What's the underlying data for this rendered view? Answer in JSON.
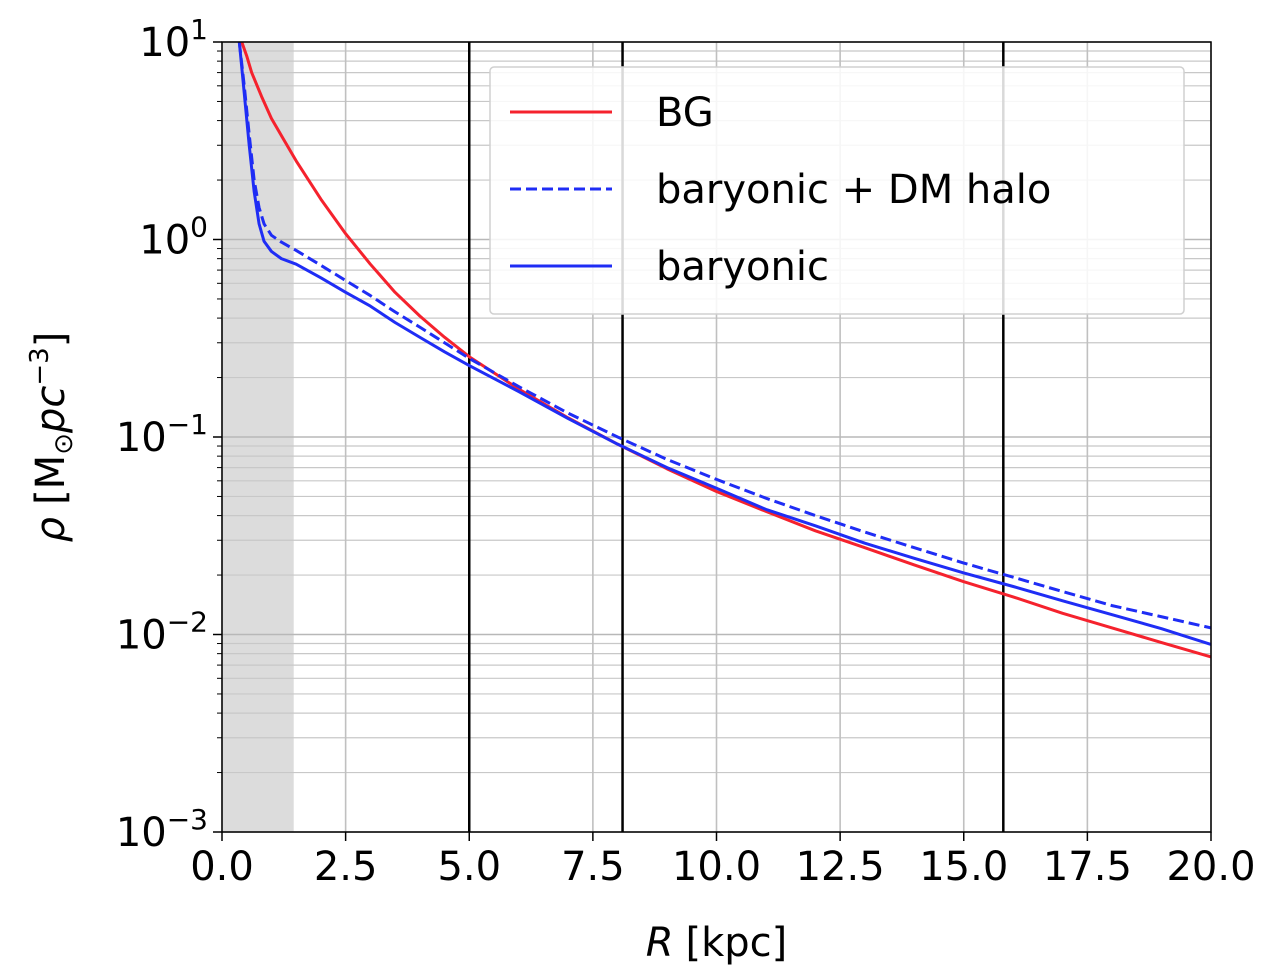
{
  "chart_data": {
    "type": "line",
    "xlabel_var": "R",
    "xlabel_unit": "[kpc]",
    "ylabel_var": "ρ",
    "ylabel_unit_open": "[M",
    "ylabel_unit_sub": "⊙",
    "ylabel_unit_mid": "pc",
    "ylabel_unit_sup": "−3",
    "ylabel_unit_close": "]",
    "xlim": [
      0,
      20
    ],
    "ylim": [
      0.001,
      10
    ],
    "yscale": "log",
    "grid": true,
    "legend_position": "upper right",
    "x_ticks": [
      "0.0",
      "2.5",
      "5.0",
      "7.5",
      "10.0",
      "12.5",
      "15.0",
      "17.5",
      "20.0"
    ],
    "y_ticks": [
      {
        "base": "10",
        "exp": "−3"
      },
      {
        "base": "10",
        "exp": "−2"
      },
      {
        "base": "10",
        "exp": "−1"
      },
      {
        "base": "10",
        "exp": "0"
      },
      {
        "base": "10",
        "exp": "1"
      }
    ],
    "shaded_region": {
      "x": [
        0,
        1.45
      ],
      "color": "#dcdcdc"
    },
    "vertical_lines": [
      5.0,
      8.1,
      15.8
    ],
    "series": [
      {
        "name": "BG",
        "color": "#f5222d",
        "style": "solid",
        "x": [
          0.4,
          0.5,
          0.6,
          0.8,
          1.0,
          1.25,
          1.5,
          2.0,
          2.5,
          3.0,
          3.5,
          4.0,
          4.5,
          5.0,
          6.0,
          7.0,
          8.0,
          9.0,
          10.0,
          11.0,
          12.0,
          13.0,
          14.0,
          15.0,
          16.0,
          17.0,
          18.0,
          19.0,
          20.0
        ],
        "y": [
          10.0,
          8.5,
          7.0,
          5.3,
          4.1,
          3.2,
          2.5,
          1.6,
          1.07,
          0.75,
          0.54,
          0.41,
          0.32,
          0.255,
          0.175,
          0.125,
          0.092,
          0.069,
          0.053,
          0.042,
          0.0335,
          0.0275,
          0.0225,
          0.0185,
          0.0155,
          0.0128,
          0.0108,
          0.0091,
          0.0077
        ]
      },
      {
        "name": "baryonic + DM halo",
        "color": "#1f2df5",
        "style": "dashed",
        "x": [
          0.35,
          0.45,
          0.55,
          0.65,
          0.75,
          0.85,
          1.0,
          1.2,
          1.5,
          2.0,
          2.5,
          3.0,
          3.5,
          4.0,
          4.5,
          5.0,
          6.0,
          7.0,
          8.0,
          9.0,
          10.0,
          11.0,
          12.0,
          13.0,
          14.0,
          15.0,
          16.0,
          17.0,
          18.0,
          19.0,
          20.0
        ],
        "y": [
          10.0,
          6.0,
          3.4,
          2.0,
          1.45,
          1.2,
          1.05,
          0.97,
          0.88,
          0.74,
          0.62,
          0.52,
          0.43,
          0.36,
          0.3,
          0.25,
          0.18,
          0.132,
          0.1,
          0.077,
          0.061,
          0.049,
          0.04,
          0.033,
          0.0275,
          0.023,
          0.0195,
          0.0165,
          0.014,
          0.0123,
          0.0108
        ]
      },
      {
        "name": "baryonic",
        "color": "#1f2df5",
        "style": "solid",
        "x": [
          0.35,
          0.45,
          0.55,
          0.65,
          0.75,
          0.85,
          1.0,
          1.2,
          1.5,
          2.0,
          2.5,
          3.0,
          3.5,
          4.0,
          4.5,
          5.0,
          6.0,
          7.0,
          8.0,
          9.0,
          10.0,
          11.0,
          12.0,
          13.0,
          14.0,
          15.0,
          16.0,
          17.0,
          18.0,
          19.0,
          20.0
        ],
        "y": [
          10.0,
          5.5,
          3.0,
          1.75,
          1.2,
          0.98,
          0.87,
          0.8,
          0.75,
          0.64,
          0.54,
          0.46,
          0.38,
          0.32,
          0.27,
          0.23,
          0.17,
          0.124,
          0.092,
          0.07,
          0.055,
          0.043,
          0.0355,
          0.029,
          0.0243,
          0.0205,
          0.0175,
          0.0148,
          0.0126,
          0.0107,
          0.0089
        ]
      }
    ]
  }
}
